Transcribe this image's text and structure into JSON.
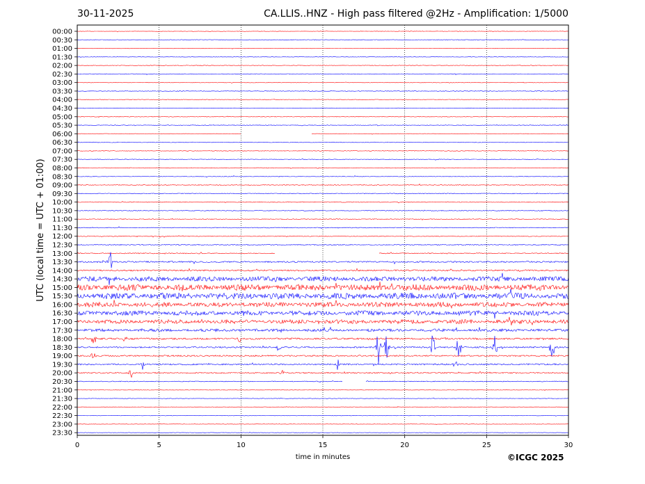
{
  "header": {
    "date": "30-11-2025",
    "title": "CA.LLIS..HNZ - High pass filtered @2Hz - Amplification: 1/5000"
  },
  "credit": "©ICGC 2025",
  "chart_data": {
    "type": "line",
    "title": "CA.LLIS..HNZ - High pass filtered @2Hz - Amplification: 1/5000",
    "xlabel": "time in minutes",
    "ylabel": "UTC (local time = UTC + 01:00)",
    "xlim": [
      0,
      30
    ],
    "xticks": [
      0,
      5,
      10,
      15,
      20,
      25,
      30
    ],
    "grid": "vertical dotted at every 5 minutes",
    "colors": {
      "even_trace": "#ff0000",
      "odd_trace": "#0000ff",
      "grid": "#000000"
    },
    "rows": [
      "00:00",
      "00:30",
      "01:00",
      "01:30",
      "02:00",
      "02:30",
      "03:00",
      "03:30",
      "04:00",
      "04:30",
      "05:00",
      "05:30",
      "06:00",
      "06:30",
      "07:00",
      "07:30",
      "08:00",
      "08:30",
      "09:00",
      "09:30",
      "10:00",
      "10:30",
      "11:00",
      "11:30",
      "12:00",
      "12:30",
      "13:00",
      "13:30",
      "14:00",
      "14:30",
      "15:00",
      "15:30",
      "16:00",
      "16:30",
      "17:00",
      "17:30",
      "18:00",
      "18:30",
      "19:00",
      "19:30",
      "20:00",
      "20:30",
      "21:00",
      "21:30",
      "22:00",
      "22:30",
      "23:00",
      "23:30"
    ],
    "row_noise_amplitude": [
      0.3,
      0.4,
      0.3,
      0.3,
      0.4,
      0.4,
      0.3,
      0.4,
      0.4,
      0.3,
      0.4,
      0.4,
      0.3,
      0.4,
      0.4,
      0.4,
      0.4,
      0.4,
      0.5,
      0.5,
      0.5,
      0.5,
      0.5,
      0.5,
      0.5,
      0.6,
      0.6,
      1.0,
      1.0,
      3.5,
      4.5,
      4.5,
      3.5,
      3.5,
      3.0,
      2.0,
      1.2,
      1.0,
      1.0,
      1.0,
      0.8,
      0.5,
      0.3,
      0.3,
      0.3,
      0.3,
      0.3,
      0.3
    ],
    "gaps": [
      {
        "row": "06:00",
        "from_min": 10.0,
        "to_min": 14.3
      },
      {
        "row": "13:00",
        "from_min": 12.1,
        "to_min": 18.4
      },
      {
        "row": "20:30",
        "from_min": 16.2,
        "to_min": 17.6
      }
    ],
    "events": [
      {
        "row": "13:30",
        "min": 2.0,
        "amp": 18
      },
      {
        "row": "14:30",
        "min": 2.3,
        "amp": 6
      },
      {
        "row": "18:00",
        "min": 1.0,
        "amp": 14
      },
      {
        "row": "18:00",
        "min": 2.9,
        "amp": 6
      },
      {
        "row": "18:00",
        "min": 9.9,
        "amp": 6
      },
      {
        "row": "18:30",
        "min": 12.3,
        "amp": 7
      },
      {
        "row": "18:30",
        "min": 18.4,
        "amp": 30
      },
      {
        "row": "18:30",
        "min": 18.9,
        "amp": 20
      },
      {
        "row": "18:30",
        "min": 21.7,
        "amp": 22
      },
      {
        "row": "18:30",
        "min": 23.3,
        "amp": 18
      },
      {
        "row": "18:30",
        "min": 25.5,
        "amp": 18
      },
      {
        "row": "18:30",
        "min": 29.0,
        "amp": 20
      },
      {
        "row": "19:00",
        "min": 1.0,
        "amp": 12
      },
      {
        "row": "19:30",
        "min": 4.0,
        "amp": 8
      },
      {
        "row": "19:30",
        "min": 15.9,
        "amp": 10
      },
      {
        "row": "19:30",
        "min": 23.1,
        "amp": 8
      },
      {
        "row": "20:00",
        "min": 3.3,
        "amp": 8
      },
      {
        "row": "20:00",
        "min": 12.5,
        "amp": 6
      }
    ]
  }
}
